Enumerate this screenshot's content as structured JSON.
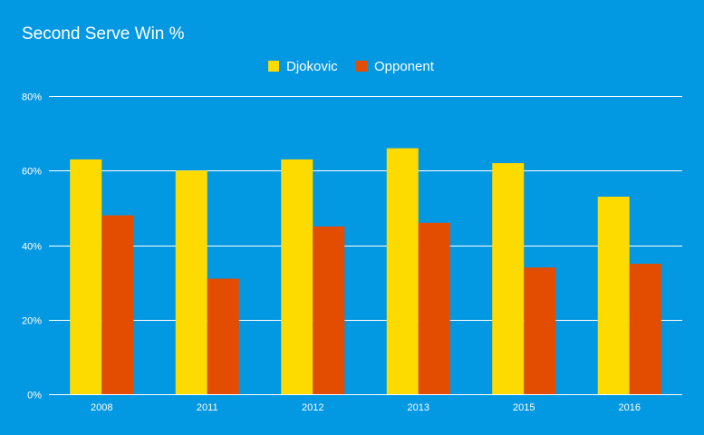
{
  "chart_data": {
    "type": "bar",
    "title": "Second Serve Win %",
    "categories": [
      "2008",
      "2011",
      "2012",
      "2013",
      "2015",
      "2016"
    ],
    "series": [
      {
        "name": "Djokovic",
        "color": "#fddb00",
        "values": [
          63,
          60,
          63,
          66,
          62,
          53
        ]
      },
      {
        "name": "Opponent",
        "color": "#e34d02",
        "values": [
          48,
          31,
          45,
          46,
          34,
          35
        ]
      }
    ],
    "y_ticks": [
      "0%",
      "20%",
      "40%",
      "60%",
      "80%"
    ],
    "y_tick_values": [
      0,
      20,
      40,
      60,
      80
    ],
    "ylim": [
      0,
      80
    ],
    "grid": true,
    "legend_position": "top-center",
    "background_color": "#0398e2",
    "xlabel": "",
    "ylabel": ""
  }
}
